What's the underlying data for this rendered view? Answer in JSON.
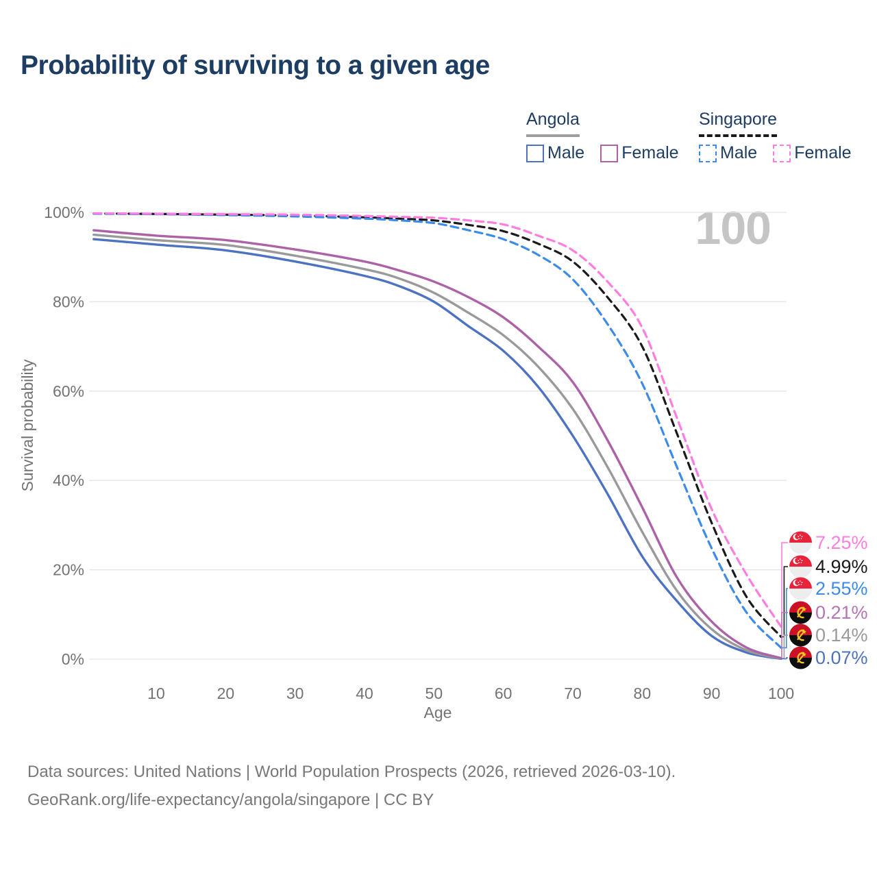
{
  "header": {
    "title": "Probability of surviving to a given age"
  },
  "legend": {
    "groups": [
      {
        "name": "Angola",
        "style": "solid",
        "items": [
          {
            "label": "Male",
            "color": "#4d72c2"
          },
          {
            "label": "Female",
            "color": "#ad62a8"
          }
        ]
      },
      {
        "name": "Singapore",
        "style": "dashed",
        "items": [
          {
            "label": "Male",
            "color": "#3d8be8"
          },
          {
            "label": "Female",
            "color": "#ff7ce0"
          }
        ]
      }
    ]
  },
  "chart_data": {
    "type": "line",
    "title": "Probability of surviving to a given age",
    "xlabel": "Age",
    "ylabel": "Survival probability",
    "watermark": "100",
    "grid": "horizontal",
    "xlim": [
      0,
      100
    ],
    "ylim": [
      0,
      100
    ],
    "x_ticks": [
      {
        "v": 10,
        "label": "10"
      },
      {
        "v": 20,
        "label": "20"
      },
      {
        "v": 30,
        "label": "30"
      },
      {
        "v": 40,
        "label": "40"
      },
      {
        "v": 50,
        "label": "50"
      },
      {
        "v": 60,
        "label": "60"
      },
      {
        "v": 70,
        "label": "70"
      },
      {
        "v": 80,
        "label": "80"
      },
      {
        "v": 90,
        "label": "90"
      },
      {
        "v": 100,
        "label": "100"
      }
    ],
    "y_ticks": [
      {
        "v": 0,
        "label": "0%"
      },
      {
        "v": 20,
        "label": "20%"
      },
      {
        "v": 40,
        "label": "40%"
      },
      {
        "v": 60,
        "label": "60%"
      },
      {
        "v": 80,
        "label": "80%"
      },
      {
        "v": 100,
        "label": "100%"
      }
    ],
    "x": [
      1,
      10,
      20,
      30,
      40,
      45,
      50,
      55,
      60,
      65,
      70,
      75,
      80,
      85,
      90,
      95,
      100
    ],
    "series": [
      {
        "name": "Angola Male",
        "country": "Angola",
        "sex": "Male",
        "flag": "ao",
        "color": "#4d72c2",
        "dash": "",
        "label_color": "#4d72c2",
        "end_label": "0.07%",
        "values": [
          94.0,
          92.8,
          91.5,
          89.0,
          85.8,
          83.5,
          80.0,
          74.5,
          69.0,
          61.0,
          50.0,
          37.0,
          23.0,
          13.0,
          5.2,
          1.5,
          0.07
        ]
      },
      {
        "name": "Angola Both sexes",
        "country": "Angola",
        "sex": "Both sexes",
        "flag": "ao",
        "color": "#9a9a9a",
        "dash": "",
        "label_color": "#9a9a9a",
        "end_label": "0.14%",
        "values": [
          95.0,
          93.8,
          92.7,
          90.3,
          87.3,
          85.2,
          82.0,
          77.5,
          72.5,
          65.5,
          56.0,
          43.0,
          28.5,
          15.3,
          6.7,
          2.0,
          0.14
        ]
      },
      {
        "name": "Angola Female",
        "country": "Angola",
        "sex": "Female",
        "flag": "ao",
        "color": "#ad62a8",
        "dash": "",
        "label_color": "#b574b5",
        "end_label": "0.21%",
        "values": [
          96.0,
          94.8,
          93.8,
          91.7,
          89.0,
          87.0,
          84.5,
          81.0,
          76.5,
          70.0,
          62.0,
          49.0,
          34.0,
          18.3,
          8.4,
          2.6,
          0.21
        ]
      },
      {
        "name": "Singapore Both sexes",
        "country": "Singapore",
        "sex": "Both sexes",
        "flag": "sg",
        "color": "#1a1a1a",
        "dash": "10 7",
        "label_color": "#1a1a1a",
        "end_label": "4.99%",
        "values": [
          99.75,
          99.65,
          99.5,
          99.3,
          98.9,
          98.6,
          98.2,
          97.2,
          95.8,
          93.0,
          89.0,
          81.0,
          70.0,
          50.5,
          30.5,
          14.0,
          4.99
        ]
      },
      {
        "name": "Singapore Male",
        "country": "Singapore",
        "sex": "Male",
        "flag": "sg",
        "color": "#3d8be8",
        "dash": "11 7",
        "label_color": "#3d8be8",
        "end_label": "2.55%",
        "values": [
          99.7,
          99.6,
          99.4,
          99.1,
          98.6,
          98.2,
          97.6,
          96.0,
          94.0,
          90.5,
          85.0,
          75.0,
          61.7,
          43.0,
          24.8,
          10.5,
          2.55
        ]
      },
      {
        "name": "Singapore Female",
        "country": "Singapore",
        "sex": "Female",
        "flag": "sg",
        "color": "#ff7ce0",
        "dash": "11 7",
        "label_color": "#ff7ce0",
        "end_label": "7.25%",
        "values": [
          99.8,
          99.7,
          99.6,
          99.5,
          99.2,
          99.0,
          98.8,
          98.2,
          97.3,
          94.8,
          91.5,
          84.5,
          74.2,
          54.0,
          33.6,
          19.0,
          7.25
        ]
      }
    ]
  },
  "footer": {
    "line1": "Data sources: United Nations | World Population Prospects (2026, retrieved 2026-03-10).",
    "line2": "GeoRank.org/life-expectancy/angola/singapore | CC BY"
  }
}
